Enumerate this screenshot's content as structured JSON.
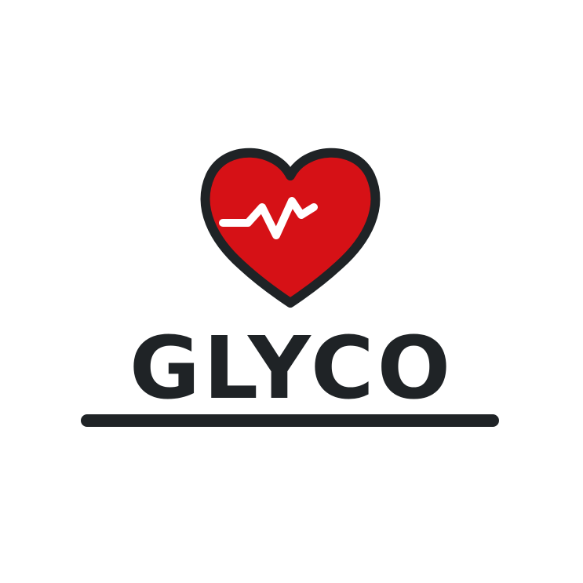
{
  "brand": {
    "name": "GLYCO",
    "icon": "heart-pulse-icon"
  },
  "colors": {
    "background": "#ffffff",
    "heart_fill": "#d61116",
    "outline": "#1f2326",
    "pulse_line": "#ffffff"
  }
}
